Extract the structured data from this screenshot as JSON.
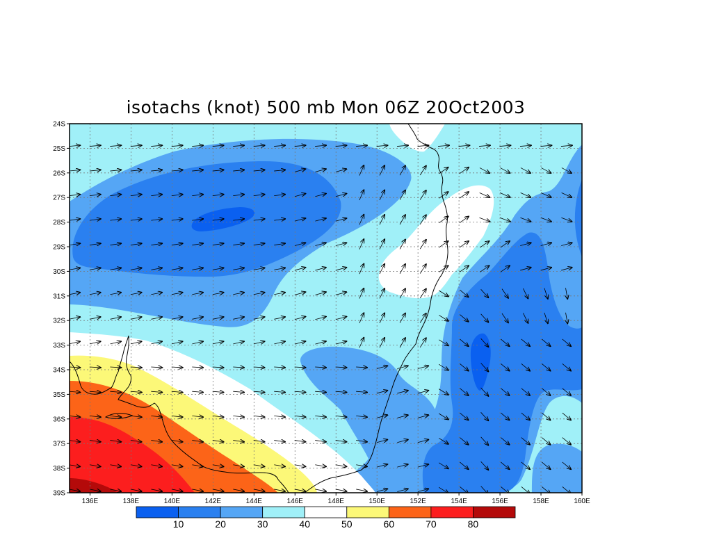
{
  "title": "isotachs (knot) 500 mb Mon 06Z 20Oct2003",
  "latitude_labels": [
    "24S",
    "25S",
    "26S",
    "27S",
    "28S",
    "29S",
    "30S",
    "31S",
    "32S",
    "33S",
    "34S",
    "35S",
    "36S",
    "37S",
    "38S",
    "39S"
  ],
  "longitude_labels": [
    "136E",
    "138E",
    "140E",
    "142E",
    "144E",
    "146E",
    "148E",
    "150E",
    "152E",
    "154E",
    "156E",
    "158E",
    "160E"
  ],
  "colorbar": {
    "labels": [
      "10",
      "20",
      "30",
      "40",
      "50",
      "60",
      "70",
      "80"
    ],
    "colors": [
      "#0a60f0",
      "#2a80f0",
      "#55a6f5",
      "#a0f0f8",
      "#ffffff",
      "#fcf878",
      "#fc6418",
      "#fc1e1e",
      "#b40a0a"
    ]
  },
  "chart_data": {
    "type": "heatmap",
    "variable": "isotachs (knot) 500 mb",
    "lon_range": [
      135,
      160
    ],
    "lat_range": [
      -39,
      -24
    ],
    "contour_levels": [
      10,
      20,
      30,
      40,
      50,
      60,
      70,
      80
    ],
    "grid": true,
    "wind_arrow_spacing_deg": 1,
    "coastline": true
  }
}
